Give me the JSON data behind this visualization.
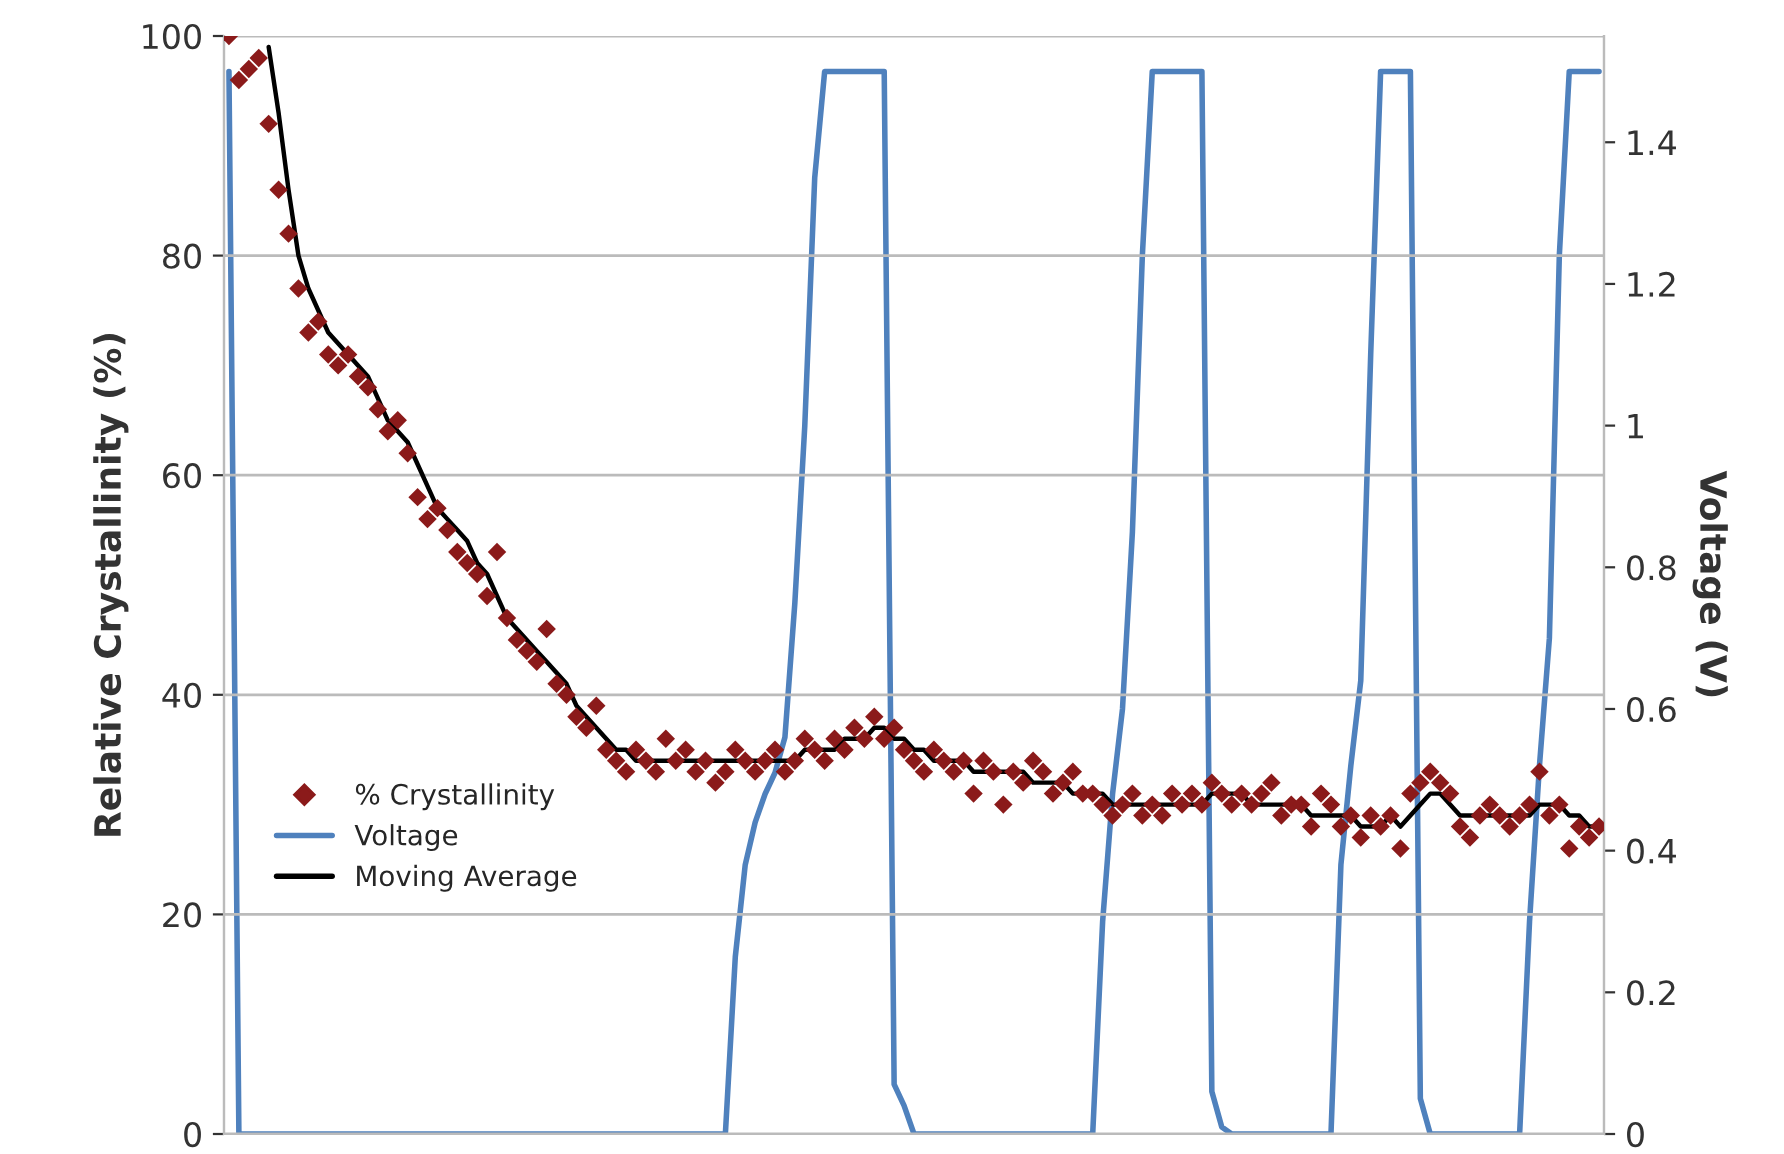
{
  "chart_data": {
    "type": "scatter",
    "ylabel": "Relative Crystallinity (%)",
    "y2label": "Voltage (V)",
    "categories": [
      null,
      null,
      null,
      null,
      null,
      null,
      null,
      null,
      null,
      null,
      null,
      null,
      null,
      null,
      null,
      null,
      null,
      null,
      null,
      null,
      null,
      null,
      null,
      null,
      null,
      null,
      null,
      null,
      null,
      null,
      null,
      null,
      null,
      null,
      null,
      null,
      null,
      null,
      null,
      null,
      null,
      null,
      null,
      null,
      null,
      null,
      null,
      null,
      null,
      null,
      null,
      null,
      null,
      null,
      null,
      null,
      null,
      null,
      null,
      null,
      null,
      null,
      null,
      null,
      null,
      null,
      null,
      null,
      null,
      null,
      null,
      null,
      null,
      null,
      null,
      null,
      null,
      null,
      null,
      null,
      null,
      null,
      null,
      null,
      null,
      null,
      null,
      null,
      null,
      null,
      null,
      null,
      null,
      null,
      null,
      null,
      null,
      null,
      null,
      null,
      null,
      null,
      null,
      null,
      null,
      null,
      null,
      null,
      null,
      null,
      null,
      null,
      null,
      null,
      null,
      null,
      null,
      null,
      null,
      null,
      null,
      null,
      null,
      null,
      null,
      null,
      null,
      null,
      null,
      null,
      null,
      null,
      null,
      null,
      null,
      null,
      null,
      null,
      null
    ],
    "series": [
      {
        "name": "% Crystallinity",
        "marker": "diamond",
        "color": "#8b1a1a",
        "values": [
          100,
          96,
          97,
          98,
          92,
          86,
          82,
          77,
          73,
          74,
          71,
          70,
          71,
          69,
          68,
          66,
          64,
          65,
          62,
          58,
          56,
          57,
          55,
          53,
          52,
          51,
          49,
          53,
          47,
          45,
          44,
          43,
          46,
          41,
          40,
          38,
          37,
          39,
          35,
          34,
          33,
          35,
          34,
          33,
          36,
          34,
          35,
          33,
          34,
          32,
          33,
          35,
          34,
          33,
          34,
          35,
          33,
          34,
          36,
          35,
          34,
          36,
          35,
          37,
          36,
          38,
          36,
          37,
          35,
          34,
          33,
          35,
          34,
          33,
          34,
          31,
          34,
          33,
          30,
          33,
          32,
          34,
          33,
          31,
          32,
          33,
          31,
          31,
          30,
          29,
          30,
          31,
          29,
          30,
          29,
          31,
          30,
          31,
          30,
          32,
          31,
          30,
          31,
          30,
          31,
          32,
          29,
          30,
          30,
          28,
          31,
          30,
          28,
          29,
          27,
          29,
          28,
          29,
          26,
          31,
          32,
          33,
          32,
          31,
          28,
          27,
          29,
          30,
          29,
          28,
          29,
          30,
          33,
          29,
          30,
          26,
          28,
          27,
          28
        ]
      },
      {
        "name": "Voltage",
        "type": "line",
        "axis": "y2",
        "color": "#4f81bd",
        "values": [
          1.5,
          0,
          0,
          0,
          0,
          0,
          0,
          0,
          0,
          0,
          0,
          0,
          0,
          0,
          0,
          0,
          0,
          0,
          0,
          0,
          0,
          0,
          0,
          0,
          0,
          0,
          0,
          0,
          0,
          0,
          0,
          0,
          0,
          0,
          0,
          0,
          0,
          0,
          0,
          0,
          0,
          0,
          0,
          0,
          0,
          0,
          0,
          0,
          0,
          0,
          0,
          0.25,
          0.38,
          0.44,
          0.48,
          0.51,
          0.56,
          0.75,
          1.0,
          1.35,
          1.5,
          1.5,
          1.5,
          1.5,
          1.5,
          1.5,
          1.5,
          0.07,
          0.04,
          0,
          0,
          0,
          0,
          0,
          0,
          0,
          0,
          0,
          0,
          0,
          0,
          0,
          0,
          0,
          0,
          0,
          0,
          0,
          0.3,
          0.48,
          0.6,
          0.85,
          1.24,
          1.5,
          1.5,
          1.5,
          1.5,
          1.5,
          1.5,
          0.06,
          0.01,
          0,
          0,
          0,
          0,
          0,
          0,
          0,
          0,
          0,
          0,
          0,
          0.38,
          0.52,
          0.64,
          1.1,
          1.5,
          1.5,
          1.5,
          1.5,
          0.05,
          0,
          0,
          0,
          0,
          0,
          0,
          0,
          0,
          0,
          0,
          0.3,
          0.52,
          0.7,
          1.24,
          1.5,
          1.5,
          1.5,
          1.5
        ]
      },
      {
        "name": "Moving Average",
        "type": "line",
        "color": "#000000",
        "values": [
          null,
          null,
          null,
          null,
          99,
          93,
          86,
          80,
          77,
          75,
          73,
          72,
          71,
          70,
          69,
          67,
          65,
          64,
          63,
          61,
          59,
          57,
          56,
          55,
          54,
          52,
          51,
          49,
          47,
          46,
          45,
          44,
          43,
          42,
          41,
          39,
          38,
          37,
          36,
          35,
          35,
          34,
          34,
          34,
          34,
          34,
          34,
          34,
          34,
          34,
          34,
          34,
          34,
          34,
          34,
          34,
          34,
          34,
          35,
          35,
          35,
          35,
          36,
          36,
          36,
          37,
          37,
          36,
          36,
          35,
          35,
          34,
          34,
          34,
          34,
          33,
          33,
          33,
          33,
          33,
          33,
          32,
          32,
          32,
          32,
          31,
          31,
          31,
          31,
          30,
          30,
          30,
          30,
          30,
          30,
          30,
          30,
          30,
          30,
          31,
          31,
          31,
          31,
          30,
          30,
          30,
          30,
          30,
          30,
          29,
          29,
          29,
          29,
          29,
          28,
          28,
          28,
          29,
          28,
          29,
          30,
          31,
          31,
          30,
          29,
          29,
          29,
          29,
          29,
          29,
          29,
          29,
          30,
          30,
          30,
          29,
          29,
          28,
          28
        ]
      }
    ],
    "ylim": [
      0,
      100
    ],
    "yticks": [
      0,
      20,
      40,
      60,
      80,
      100
    ],
    "y2lim": [
      0,
      1.55
    ],
    "y2ticks": [
      0,
      0.2,
      0.4,
      0.6,
      0.8,
      1,
      1.2,
      1.4
    ],
    "grid": "y",
    "legend": "left",
    "tick_labels": "y"
  }
}
